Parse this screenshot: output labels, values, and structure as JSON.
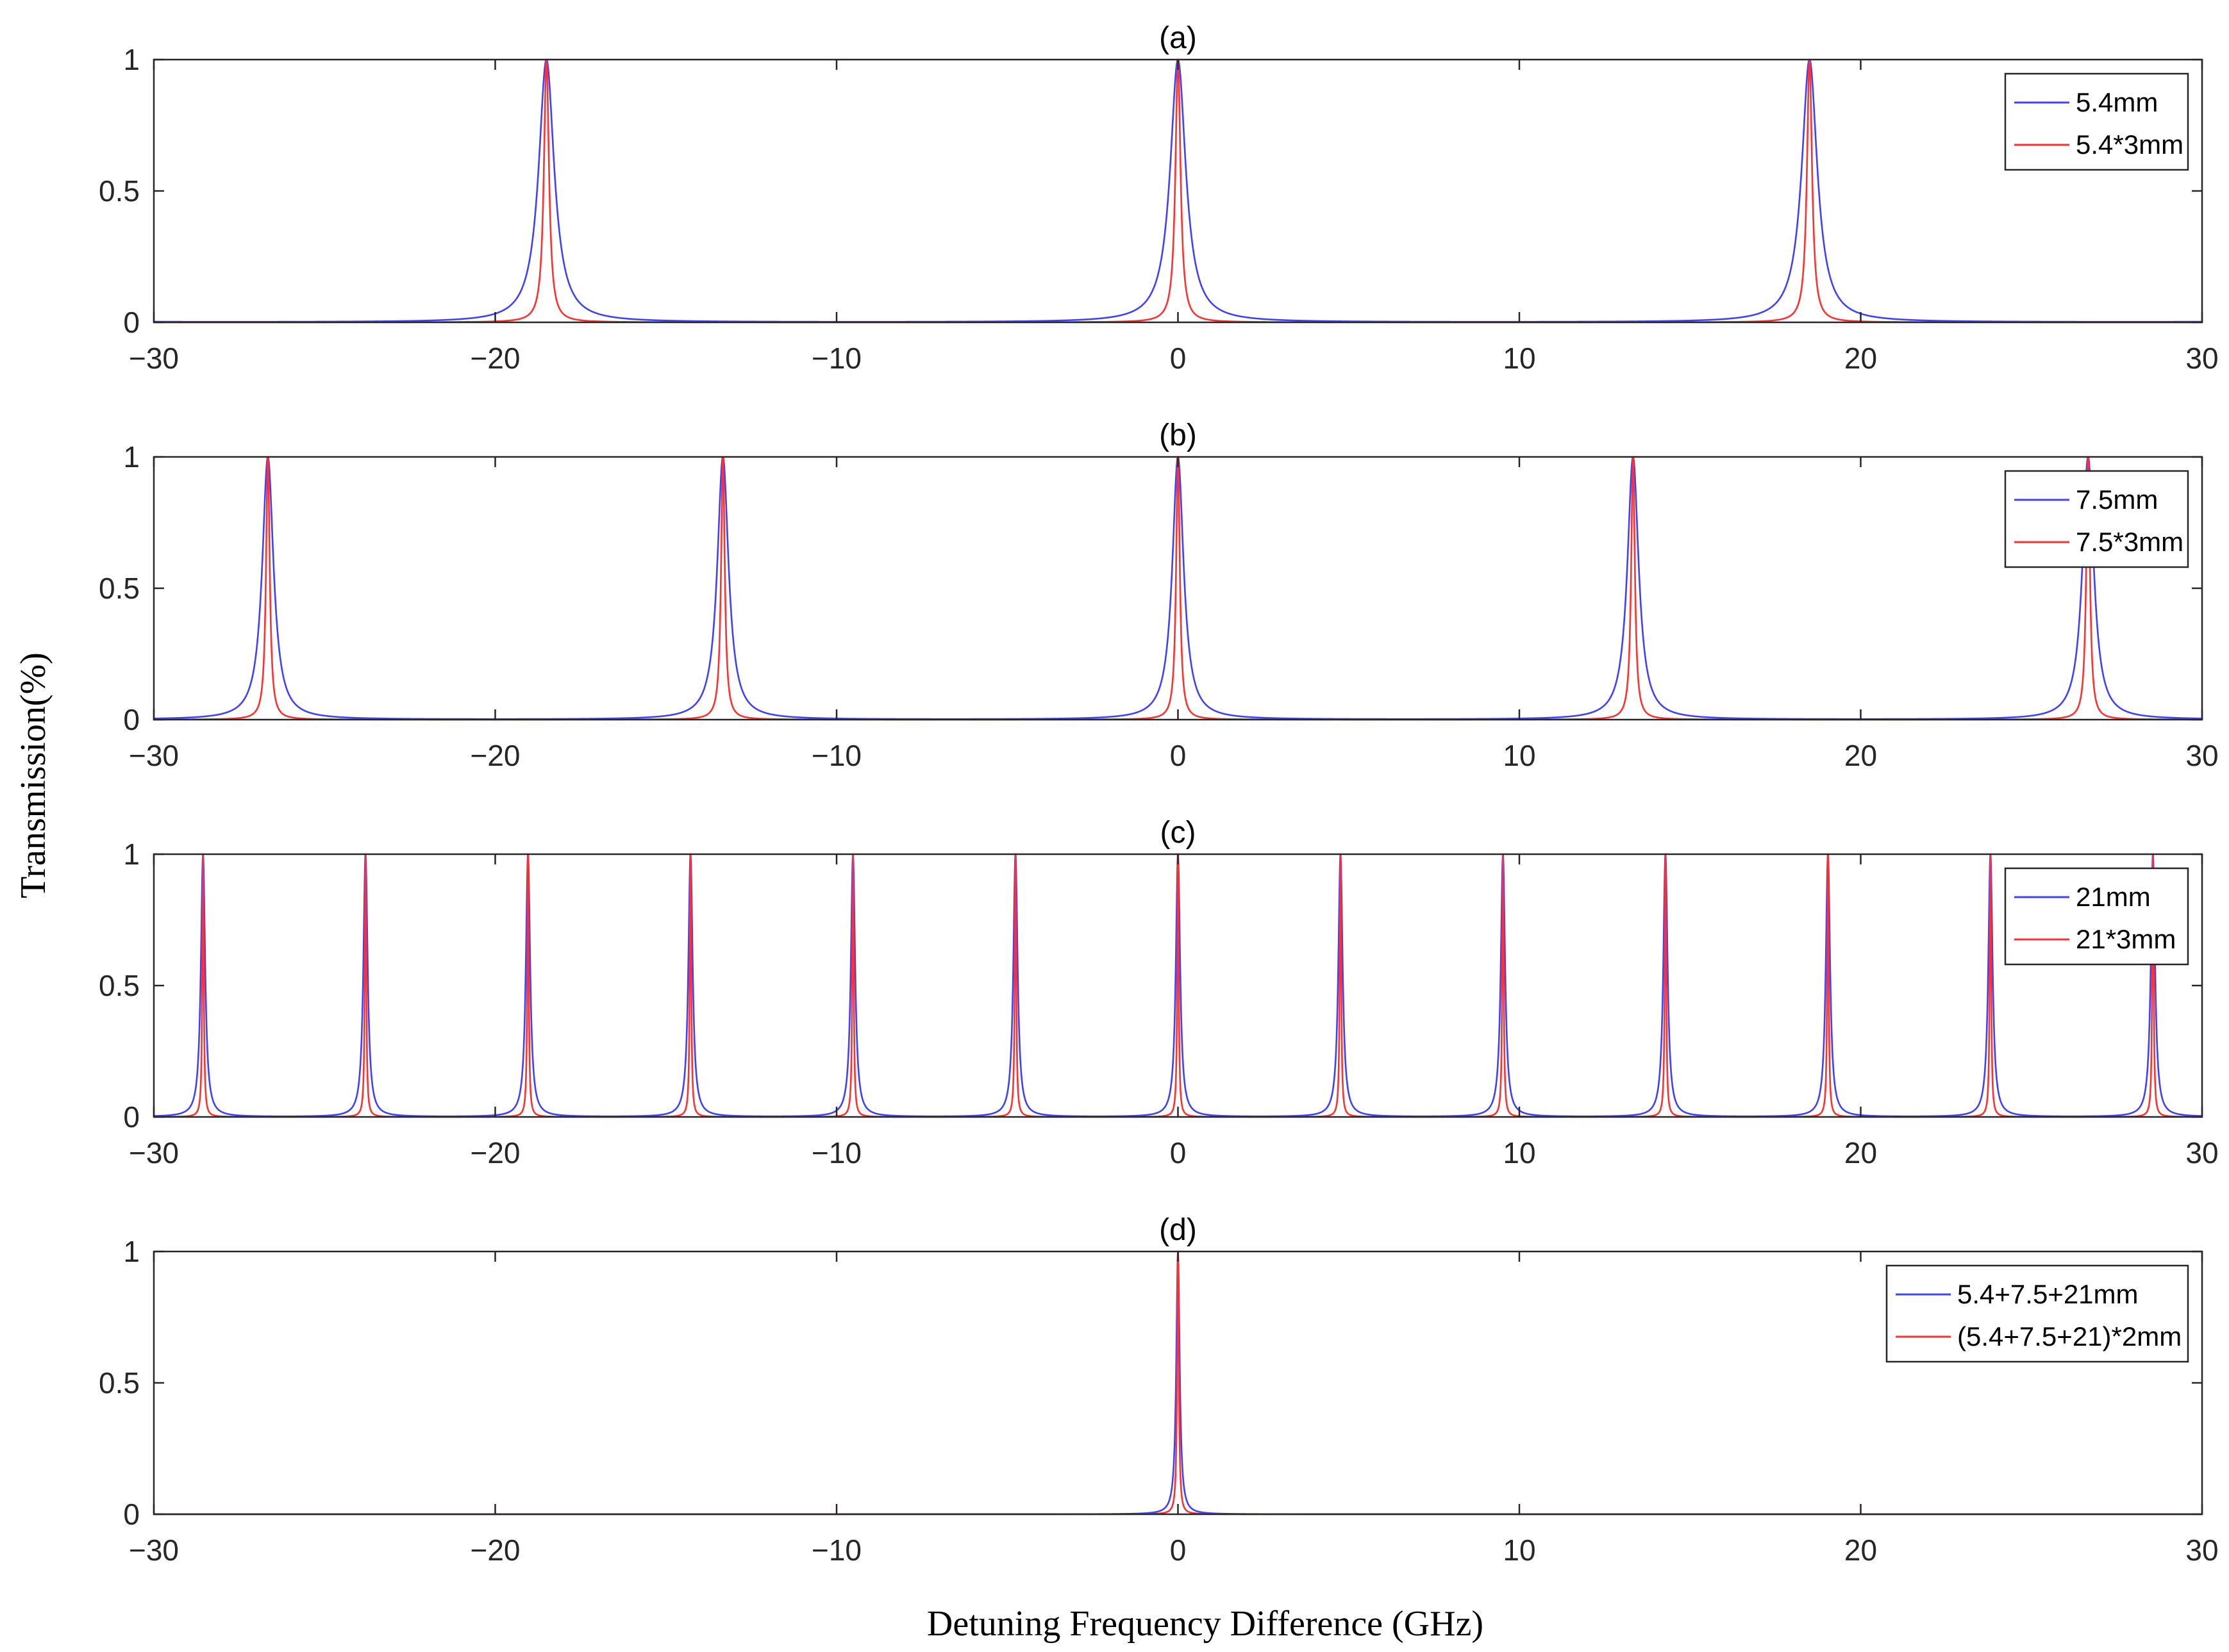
{
  "figure": {
    "ylabel": "Transmission(%)",
    "xlabel": "Detuning Frequency Difference (GHz)"
  },
  "colors": {
    "blue": "#4040ff",
    "red": "#ff3030"
  },
  "chart_data": [
    {
      "type": "line",
      "title": "(a)",
      "xlim": [
        -30,
        30
      ],
      "ylim": [
        0,
        1
      ],
      "xticks": [
        -30,
        -20,
        -10,
        0,
        10,
        20,
        30
      ],
      "xtick_labels": [
        "−30",
        "−20",
        "−10",
        "0",
        "10",
        "20",
        "30"
      ],
      "yticks": [
        0,
        0.5,
        1
      ],
      "ytick_labels": [
        "0",
        "0.5",
        "1"
      ],
      "legend_position": "top-right",
      "series": [
        {
          "name": "5.4mm",
          "color": "#4040ff",
          "peak_spacing_ghz": 18.5,
          "fwhm_ghz": 0.55
        },
        {
          "name": "5.4*3mm",
          "color": "#ff3030",
          "peak_spacing_ghz": 18.5,
          "fwhm_ghz": 0.18
        }
      ]
    },
    {
      "type": "line",
      "title": "(b)",
      "xlim": [
        -30,
        30
      ],
      "ylim": [
        0,
        1
      ],
      "xticks": [
        -30,
        -20,
        -10,
        0,
        10,
        20,
        30
      ],
      "xtick_labels": [
        "−30",
        "−20",
        "−10",
        "0",
        "10",
        "20",
        "30"
      ],
      "yticks": [
        0,
        0.5,
        1
      ],
      "ytick_labels": [
        "0",
        "0.5",
        "1"
      ],
      "legend_position": "top-right",
      "series": [
        {
          "name": "7.5mm",
          "color": "#4040ff",
          "peak_spacing_ghz": 13.33,
          "fwhm_ghz": 0.4
        },
        {
          "name": "7.5*3mm",
          "color": "#ff3030",
          "peak_spacing_ghz": 13.33,
          "fwhm_ghz": 0.13
        }
      ]
    },
    {
      "type": "line",
      "title": "(c)",
      "xlim": [
        -30,
        30
      ],
      "ylim": [
        0,
        1
      ],
      "xticks": [
        -30,
        -20,
        -10,
        0,
        10,
        20,
        30
      ],
      "xtick_labels": [
        "−30",
        "−20",
        "−10",
        "0",
        "10",
        "20",
        "30"
      ],
      "yticks": [
        0,
        0.5,
        1
      ],
      "ytick_labels": [
        "0",
        "0.5",
        "1"
      ],
      "legend_position": "top-right",
      "series": [
        {
          "name": "21mm",
          "color": "#4040ff",
          "peak_spacing_ghz": 4.76,
          "fwhm_ghz": 0.15
        },
        {
          "name": "21*3mm",
          "color": "#ff3030",
          "peak_spacing_ghz": 4.76,
          "fwhm_ghz": 0.05
        }
      ]
    },
    {
      "type": "line",
      "title": "(d)",
      "xlim": [
        -30,
        30
      ],
      "ylim": [
        0,
        1
      ],
      "xticks": [
        -30,
        -20,
        -10,
        0,
        10,
        20,
        30
      ],
      "xtick_labels": [
        "−30",
        "−20",
        "−10",
        "0",
        "10",
        "20",
        "30"
      ],
      "yticks": [
        0,
        0.5,
        1
      ],
      "ytick_labels": [
        "0",
        "0.5",
        "1"
      ],
      "legend_position": "top-right",
      "series": [
        {
          "name": "5.4+7.5+21mm",
          "color": "#4040ff",
          "peak_spacing_ghz": 0,
          "fwhm_ghz": 0.12
        },
        {
          "name": "(5.4+7.5+21)*2mm",
          "color": "#ff3030",
          "peak_spacing_ghz": 0,
          "fwhm_ghz": 0.06
        }
      ]
    }
  ]
}
